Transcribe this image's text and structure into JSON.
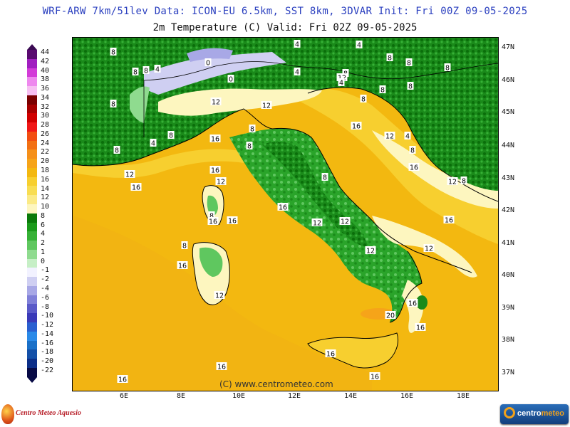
{
  "header": {
    "line1": "WRF-ARW 7km/51lev  Data: ICON-EU 6.5km, SST 8km, 3DVAR  Init: Fri 00Z 09-05-2025",
    "line2": "2m Temperature (C)  Valid: Fri 02Z 09-05-2025"
  },
  "legend": {
    "labels": [
      "44",
      "42",
      "40",
      "38",
      "36",
      "34",
      "32",
      "30",
      "28",
      "26",
      "24",
      "22",
      "20",
      "18",
      "16",
      "14",
      "12",
      "10",
      "8",
      "6",
      "4",
      "2",
      "1",
      "0",
      "-1",
      "-2",
      "-4",
      "-6",
      "-8",
      "-10",
      "-12",
      "-14",
      "-16",
      "-18",
      "-20",
      "-22"
    ],
    "colors": [
      "#5a0a70",
      "#a11ec0",
      "#d33bd8",
      "#ee88ee",
      "#f7bff2",
      "#7a0000",
      "#a70000",
      "#d00000",
      "#f01818",
      "#f24e12",
      "#f27014",
      "#f5901a",
      "#f6a419",
      "#f3b810",
      "#f7cf2f",
      "#f8dd52",
      "#fbea86",
      "#fdf6bf",
      "#0a7a0a",
      "#1a9a1a",
      "#36b136",
      "#5fc75f",
      "#8fdb8f",
      "#c6efc6",
      "#f2f2ff",
      "#cfcff2",
      "#a8a8e6",
      "#8080d8",
      "#5a5ac8",
      "#3a3ab8",
      "#2a60d0",
      "#2a8ae8",
      "#1a70c8",
      "#1450a8",
      "#0c2e88",
      "#070a45"
    ]
  },
  "map": {
    "lat_labels": [
      "47N",
      "46N",
      "45N",
      "44N",
      "43N",
      "42N",
      "41N",
      "40N",
      "39N",
      "38N",
      "37N"
    ],
    "lon_labels": [
      "6E",
      "8E",
      "10E",
      "12E",
      "14E",
      "16E",
      "18E"
    ],
    "credit": "(C) www.centrometeo.com",
    "contour_labels": [
      {
        "text": "8"
      },
      {
        "text": "8"
      },
      {
        "text": "8"
      },
      {
        "text": "4"
      },
      {
        "text": "0"
      },
      {
        "text": "0"
      },
      {
        "text": "4"
      },
      {
        "text": "8"
      },
      {
        "text": "8"
      },
      {
        "text": "4"
      },
      {
        "text": "8"
      },
      {
        "text": "8"
      },
      {
        "text": "4"
      },
      {
        "text": "8"
      },
      {
        "text": "8"
      },
      {
        "text": "8"
      },
      {
        "text": "8"
      },
      {
        "text": "12"
      },
      {
        "text": "12"
      },
      {
        "text": "8"
      },
      {
        "text": "8"
      },
      {
        "text": "16"
      },
      {
        "text": "8"
      },
      {
        "text": "4"
      },
      {
        "text": "8"
      },
      {
        "text": "12"
      },
      {
        "text": "16"
      },
      {
        "text": "12"
      },
      {
        "text": "16"
      },
      {
        "text": "8"
      },
      {
        "text": "12"
      },
      {
        "text": "16"
      },
      {
        "text": "16"
      },
      {
        "text": "12"
      },
      {
        "text": "4"
      },
      {
        "text": "8"
      },
      {
        "text": "16"
      },
      {
        "text": "12"
      },
      {
        "text": "16"
      },
      {
        "text": "8"
      },
      {
        "text": "4"
      },
      {
        "text": "16"
      },
      {
        "text": "12"
      },
      {
        "text": "12"
      },
      {
        "text": "8"
      },
      {
        "text": "16"
      },
      {
        "text": "8"
      },
      {
        "text": "16"
      },
      {
        "text": "12"
      },
      {
        "text": "12"
      },
      {
        "text": "16"
      },
      {
        "text": "12"
      },
      {
        "text": "20"
      },
      {
        "text": "16"
      },
      {
        "text": "16"
      },
      {
        "text": "16"
      },
      {
        "text": "16"
      },
      {
        "text": "16"
      }
    ]
  },
  "logos": {
    "left": "Centro Meteo Aquesio",
    "right_a": "centro",
    "right_b": "meteo"
  }
}
